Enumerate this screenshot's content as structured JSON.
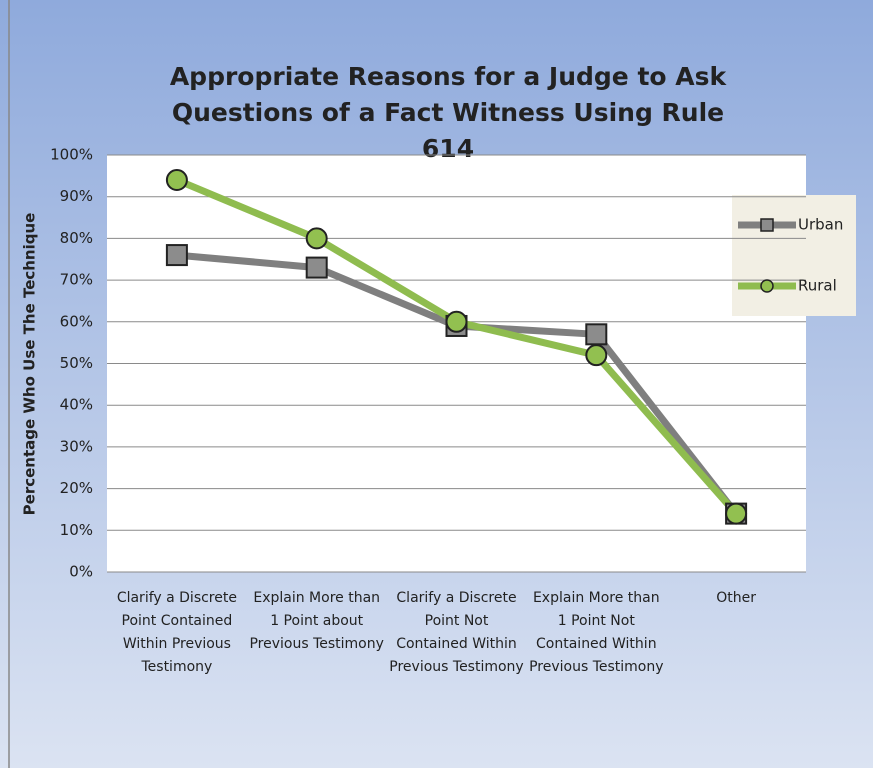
{
  "chart_data": {
    "type": "line",
    "title": "Appropriate Reasons for a Judge to Ask Questions of a Fact Witness Using Rule 614",
    "y_label": "Percentage Who Use The Technique",
    "categories": [
      "Clarify a Discrete Point Contained Within Previous Testimony",
      "Explain More than 1 Point about Previous Testimony",
      "Clarify a Discrete Point Not Contained Within Previous Testimony",
      "Explain More than 1 Point Not Contained Within Previous Testimony",
      "Other"
    ],
    "series": [
      {
        "name": "Urban",
        "color": "#7f7f7f",
        "marker_color": "#8c8c8c",
        "marker": "square",
        "values": [
          76,
          73,
          59,
          57,
          14
        ]
      },
      {
        "name": "Rural",
        "color": "#8fbc4f",
        "marker_color": "#92c050",
        "marker": "circle",
        "values": [
          94,
          80,
          60,
          52,
          14
        ]
      }
    ],
    "ylim": [
      0,
      100
    ],
    "yticks": [
      {
        "value": 0,
        "label": "0%"
      },
      {
        "value": 10,
        "label": "10%"
      },
      {
        "value": 20,
        "label": "20%"
      },
      {
        "value": 30,
        "label": "30%"
      },
      {
        "value": 40,
        "label": "40%"
      },
      {
        "value": 50,
        "label": "50%"
      },
      {
        "value": 60,
        "label": "60%"
      },
      {
        "value": 70,
        "label": "70%"
      },
      {
        "value": 80,
        "label": "80%"
      },
      {
        "value": 90,
        "label": "90%"
      },
      {
        "value": 100,
        "label": "100%"
      }
    ],
    "grid": true,
    "legend": "right"
  }
}
